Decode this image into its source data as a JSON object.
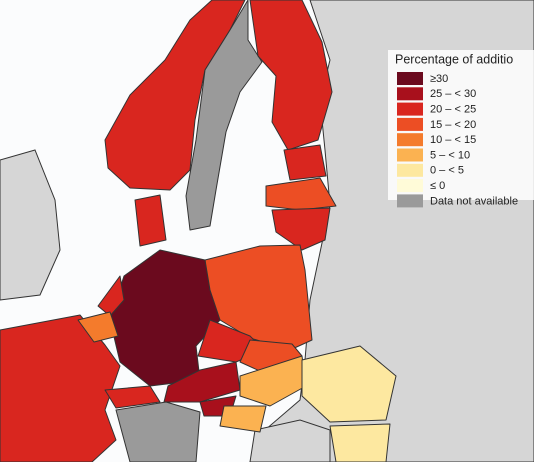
{
  "legend": {
    "title": "Percentage of additio",
    "items": [
      {
        "label": "≥30",
        "color": "#6b0a1e"
      },
      {
        "label": "25 – < 30",
        "color": "#a8101c"
      },
      {
        "label": "20 – < 25",
        "color": "#d9261f"
      },
      {
        "label": "15 – < 20",
        "color": "#ec4e24"
      },
      {
        "label": "10 – < 15",
        "color": "#f47b2c"
      },
      {
        "label": "5 – < 10",
        "color": "#fbb251"
      },
      {
        "label": "0 – < 5",
        "color": "#fde8a0"
      },
      {
        "label": "≤ 0",
        "color": "#fffbd8"
      },
      {
        "label": "Data not available",
        "color": "#9a9a9a"
      }
    ]
  }
}
